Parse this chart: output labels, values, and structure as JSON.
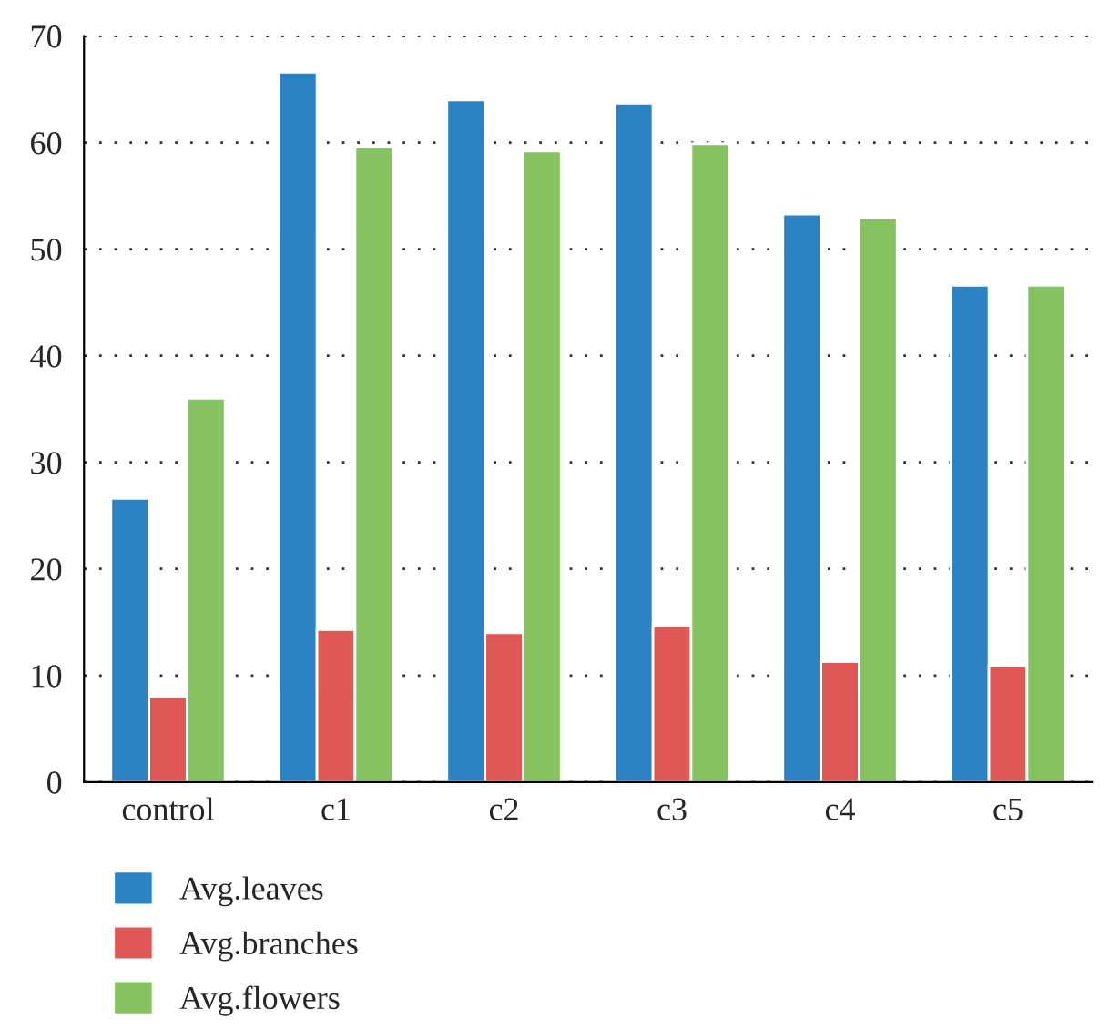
{
  "chart_data": {
    "type": "bar",
    "categories": [
      "control",
      "c1",
      "c2",
      "c3",
      "c4",
      "c5"
    ],
    "series": [
      {
        "name": "Avg.leaves",
        "color": "#2b83c3",
        "values": [
          26.6,
          66.6,
          64.0,
          63.7,
          53.3,
          46.6
        ]
      },
      {
        "name": "Avg.branches",
        "color": "#df5855",
        "values": [
          8.0,
          14.3,
          14.0,
          14.7,
          11.3,
          10.9
        ]
      },
      {
        "name": "Avg.flowers",
        "color": "#86c260",
        "values": [
          36.0,
          59.6,
          59.2,
          59.9,
          52.9,
          46.6
        ]
      }
    ],
    "ylim": [
      0,
      70
    ],
    "yticks": [
      0,
      10,
      20,
      30,
      40,
      50,
      60,
      70
    ],
    "grid": "y",
    "legend": "bottom"
  }
}
